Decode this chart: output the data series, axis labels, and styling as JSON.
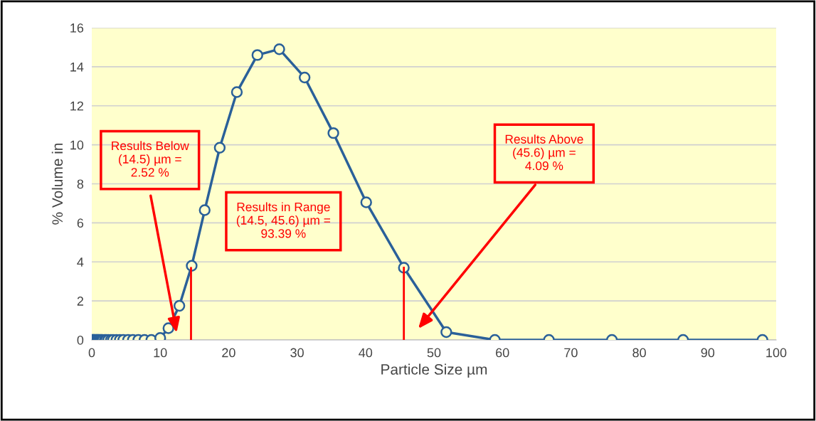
{
  "chart_data": {
    "type": "line",
    "xlabel": "Particle Size µm",
    "ylabel": "% Volume in",
    "x": [
      0.1,
      0.2,
      0.3,
      0.4,
      0.5,
      0.65,
      0.75,
      0.85,
      1.0,
      1.1,
      1.3,
      1.4,
      1.6,
      1.9,
      2.1,
      2.4,
      2.8,
      3.1,
      3.6,
      4.1,
      4.6,
      5.3,
      6.0,
      6.8,
      7.7,
      8.7,
      10.0,
      11.2,
      12.8,
      14.6,
      16.5,
      18.7,
      21.2,
      24.2,
      27.4,
      31.1,
      35.3,
      40.1,
      45.6,
      51.8,
      58.9,
      66.8,
      76.0,
      86.4,
      98.0
    ],
    "series": [
      {
        "color": "#2a6099",
        "values": [
          0,
          0,
          0,
          0,
          0,
          0,
          0,
          0,
          0,
          0,
          0,
          0,
          0,
          0,
          0,
          0,
          0,
          0,
          0,
          0,
          0,
          0,
          0,
          0,
          0,
          0,
          0.1,
          0.6,
          1.75,
          3.8,
          6.65,
          9.85,
          12.7,
          14.6,
          14.9,
          13.45,
          10.6,
          7.05,
          3.7,
          0.4,
          0,
          0,
          0,
          0,
          0
        ]
      }
    ],
    "marker": "circle",
    "line_style": "solid",
    "xlim": [
      0,
      100
    ],
    "xticks": [
      0,
      10,
      20,
      30,
      40,
      50,
      60,
      70,
      80,
      90,
      100
    ],
    "ylim": [
      0,
      16
    ],
    "yticks": [
      0,
      2,
      4,
      6,
      8,
      10,
      12,
      14,
      16
    ],
    "grid": "y",
    "ref_lines": [
      {
        "axis": "x",
        "value": 14.5,
        "color": "#ff0000"
      },
      {
        "axis": "x",
        "value": 45.6,
        "color": "#ff0000"
      }
    ],
    "annotations": [
      "Results Below\n(14.5) µm =\n2.52 %",
      "Results in Range\n(14.5, 45.6) µm =\n93.39 %",
      "Results Above\n(45.6) µm =\n4.09 %"
    ]
  }
}
